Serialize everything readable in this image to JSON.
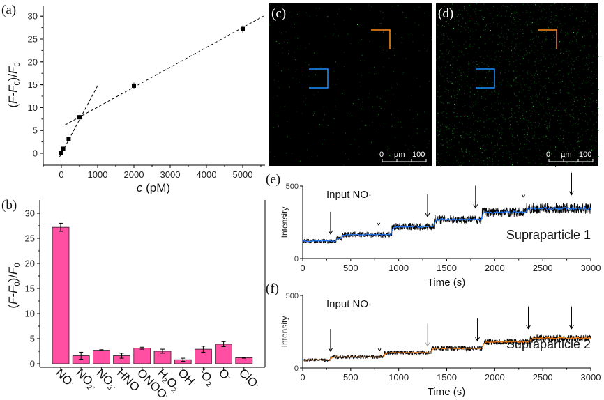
{
  "panel_labels": {
    "a": "(a)",
    "b": "(b)",
    "c": "(c)",
    "d": "(d)",
    "e": "(e)",
    "f": "(f)"
  },
  "colors": {
    "bar": "#ff4fa3",
    "trace_raw": "#000000",
    "trace1_mean": "#1e7bff",
    "trace2_mean": "#ff7f0e",
    "roi_blue": "#1e90ff",
    "roi_orange": "#ff8c1a",
    "fluorescence": "#22cc33"
  },
  "chart_data": [
    {
      "id": "a",
      "type": "scatter",
      "xlabel_italic": "c",
      "xlabel_unit": " (pM)",
      "ylabel": "(F-F0)/F0",
      "xlim": [
        -500,
        5570
      ],
      "ylim": [
        -2.6,
        32.3
      ],
      "xticks": [
        "0",
        "1000",
        "2000",
        "3000",
        "4000",
        "5000"
      ],
      "yticks": [
        "0",
        "5",
        "10",
        "15",
        "20",
        "25",
        "30"
      ],
      "points": [
        {
          "x": 0,
          "y": 0,
          "err": 0.3
        },
        {
          "x": 50,
          "y": 1.0,
          "err": 0.3
        },
        {
          "x": 200,
          "y": 3.2,
          "err": 0.3
        },
        {
          "x": 500,
          "y": 7.9,
          "err": 0.5
        },
        {
          "x": 2000,
          "y": 14.8,
          "err": 0.7
        },
        {
          "x": 5000,
          "y": 27.2,
          "err": 0.8
        }
      ],
      "fit_lines": [
        {
          "x": [
            -50,
            1000
          ],
          "y": [
            -0.8,
            14.8
          ],
          "style": "dashed"
        },
        {
          "x": [
            100,
            5570
          ],
          "y": [
            6.2,
            30.0
          ],
          "style": "dashed"
        }
      ]
    },
    {
      "id": "b",
      "type": "bar",
      "ylabel": "(F-F0)/F0",
      "ylim": [
        -1,
        31.5
      ],
      "yticks": [
        "0",
        "5",
        "10",
        "15",
        "20",
        "25",
        "30"
      ],
      "categories": [
        "NO·",
        "NO2-",
        "NO3-",
        "HNO",
        "ONOO-",
        "H2O2",
        "OH·",
        "1O2",
        "O2-",
        "ClO-"
      ],
      "values": [
        27.2,
        1.6,
        2.7,
        1.6,
        3.1,
        2.5,
        0.8,
        2.9,
        3.9,
        1.2
      ],
      "errors": [
        0.8,
        0.7,
        0.1,
        0.5,
        0.2,
        0.4,
        0.3,
        0.6,
        0.5,
        0.1
      ]
    },
    {
      "id": "e",
      "type": "line",
      "xlabel": "Time (s)",
      "ylabel": "Intensity",
      "xlim": [
        0,
        3000
      ],
      "ylim": [
        0,
        500
      ],
      "xticks": [
        "0",
        "500",
        "1000",
        "1500",
        "2000",
        "2500",
        "3000"
      ],
      "yticks": [
        "0",
        "500"
      ],
      "annotation": "Input NO·",
      "series_label": "Supraparticle 1",
      "step_levels": [
        {
          "from": 0,
          "to": 350,
          "level": 120
        },
        {
          "from": 350,
          "to": 410,
          "level": 140
        },
        {
          "from": 410,
          "to": 930,
          "level": 165
        },
        {
          "from": 930,
          "to": 1370,
          "level": 220
        },
        {
          "from": 1370,
          "to": 1870,
          "level": 270
        },
        {
          "from": 1870,
          "to": 2330,
          "level": 320
        },
        {
          "from": 2330,
          "to": 3000,
          "level": 345
        }
      ],
      "arrow_times": [
        290,
        1300,
        1800,
        2800
      ],
      "minor_marker_times": [
        790,
        2300
      ]
    },
    {
      "id": "f",
      "type": "line",
      "xlabel": "Time (s)",
      "ylabel": "Intensity",
      "xlim": [
        0,
        3000
      ],
      "ylim": [
        0,
        500
      ],
      "xticks": [
        "0",
        "500",
        "1000",
        "1500",
        "2000",
        "2500",
        "3000"
      ],
      "yticks": [
        "0",
        "500"
      ],
      "annotation": "Input NO·",
      "series_label": "Supraparticle 2",
      "step_levels": [
        {
          "from": 0,
          "to": 290,
          "level": 55
        },
        {
          "from": 290,
          "to": 850,
          "level": 75
        },
        {
          "from": 850,
          "to": 1340,
          "level": 105
        },
        {
          "from": 1340,
          "to": 1880,
          "level": 135
        },
        {
          "from": 1880,
          "to": 2370,
          "level": 180
        },
        {
          "from": 2370,
          "to": 3000,
          "level": 205
        }
      ],
      "arrow_times": [
        290,
        1300,
        1820,
        2350,
        2800
      ],
      "minor_marker_times": [
        800
      ]
    }
  ],
  "images": {
    "c": {
      "scalebar_start": "0",
      "scalebar_unit": "µm",
      "scalebar_end": "100",
      "signal_density": 0.02
    },
    "d": {
      "scalebar_start": "0",
      "scalebar_unit": "µm",
      "scalebar_end": "100",
      "signal_density": 0.12
    }
  }
}
